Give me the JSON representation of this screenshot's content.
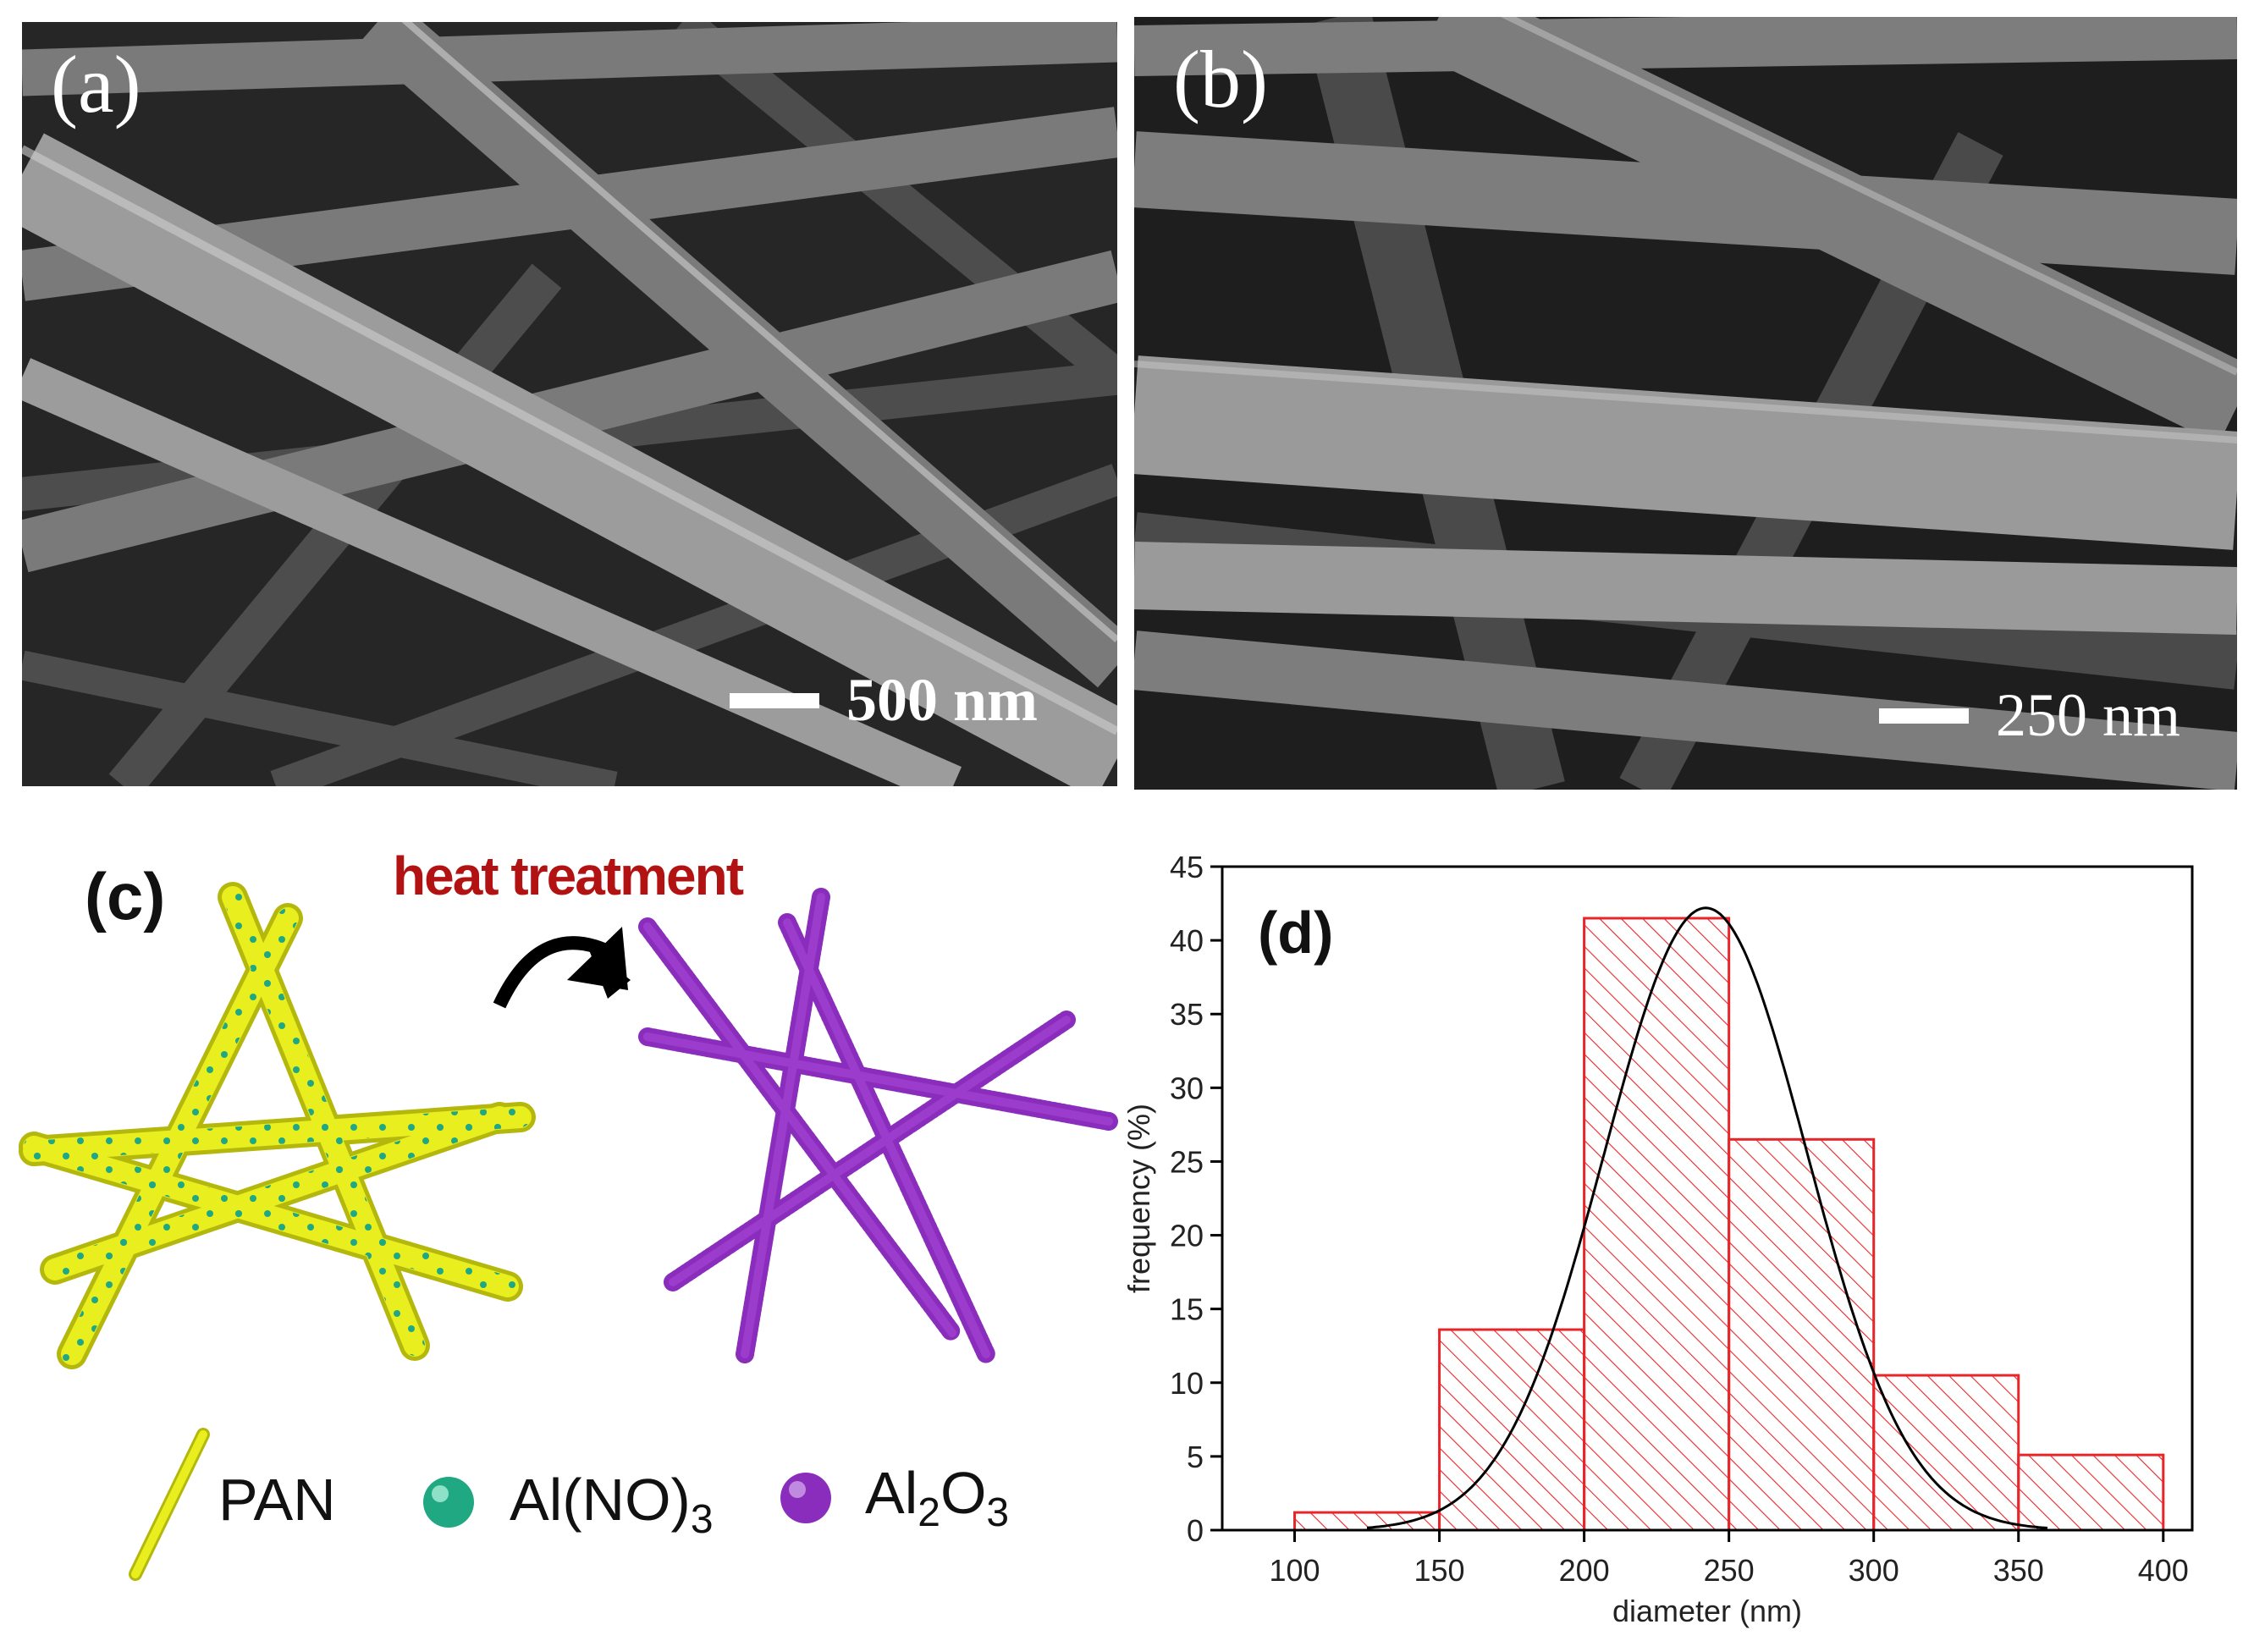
{
  "panel_a": {
    "label": "(a)",
    "scale": "500 nm"
  },
  "panel_b": {
    "label": "(b)",
    "scale": "250 nm"
  },
  "panel_c": {
    "label": "(c)",
    "arrow_label": "heat treatment",
    "legend": {
      "pan": "PAN",
      "nitrate_prefix": "Al(NO)",
      "nitrate_sub": "3",
      "oxide_a": "Al",
      "oxide_sub1": "2",
      "oxide_b": "O",
      "oxide_sub2": "3"
    },
    "colors": {
      "pan": "#e9ee1f",
      "nitrate": "#1fa882",
      "oxide": "#8a2dbd",
      "arrow_label": "#b31212"
    }
  },
  "chart_data": {
    "type": "bar",
    "label": "(d)",
    "xlabel": "diameter (nm)",
    "ylabel": "frequency (%)",
    "xlim": [
      75,
      410
    ],
    "ylim": [
      0,
      45
    ],
    "xticks": [
      "100",
      "150",
      "200",
      "250",
      "300",
      "350",
      "400"
    ],
    "yticks": [
      "0",
      "5",
      "10",
      "15",
      "20",
      "25",
      "30",
      "35",
      "40",
      "45"
    ],
    "bins": [
      {
        "from": 100,
        "to": 150,
        "value": 1.2
      },
      {
        "from": 150,
        "to": 200,
        "value": 13.6
      },
      {
        "from": 200,
        "to": 250,
        "value": 41.5
      },
      {
        "from": 250,
        "to": 300,
        "value": 26.5
      },
      {
        "from": 300,
        "to": 350,
        "value": 10.5
      },
      {
        "from": 350,
        "to": 400,
        "value": 5.1
      }
    ],
    "fit": {
      "type": "gaussian",
      "mean": 242,
      "sigma": 35,
      "peak": 42.2
    },
    "colors": {
      "bar": "#e8262a",
      "fit": "#000000"
    }
  }
}
